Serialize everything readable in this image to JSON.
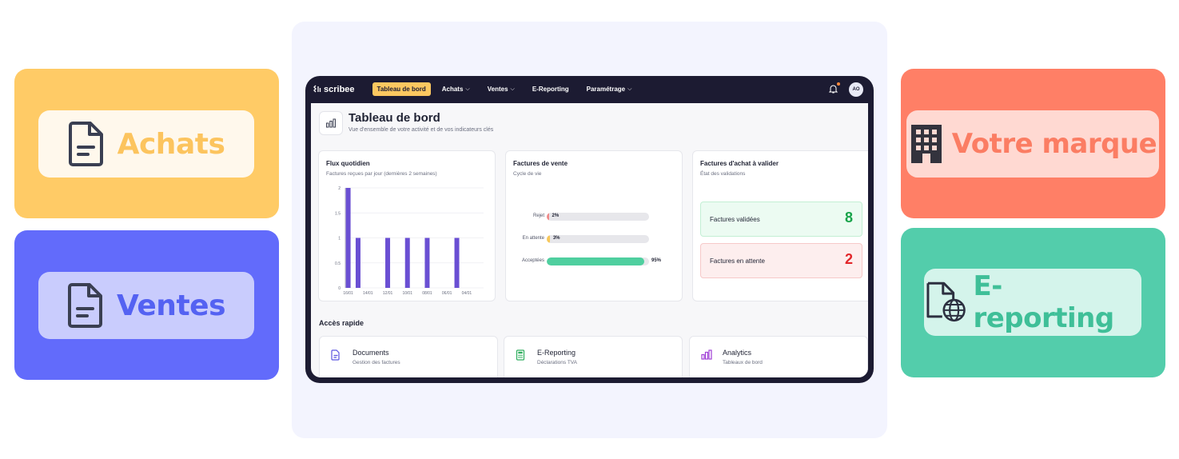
{
  "tiles": {
    "achats": {
      "label": "Achats"
    },
    "ventes": {
      "label": "Ventes"
    },
    "marque": {
      "label": "Votre marque"
    },
    "ereporting": {
      "label": "E-reporting"
    }
  },
  "nav": {
    "brand": "scribee",
    "items": [
      {
        "label": "Tableau de bord",
        "active": true,
        "dropdown": false
      },
      {
        "label": "Achats",
        "dropdown": true
      },
      {
        "label": "Ventes",
        "dropdown": true
      },
      {
        "label": "E-Reporting",
        "dropdown": false
      },
      {
        "label": "Paramétrage",
        "dropdown": true
      }
    ],
    "avatar_initials": "AO",
    "notification_dot_color": "#ff8a3d"
  },
  "page": {
    "title": "Tableau de bord",
    "subtitle": "Vue d'ensemble de votre activité et de vos indicateurs clés"
  },
  "cards": {
    "flux": {
      "title": "Flux quotidien",
      "subtitle": "Factures reçues par jour (dernières 2 semaines)"
    },
    "ventes": {
      "title": "Factures de vente",
      "subtitle": "Cycle de vie",
      "rows": [
        {
          "label": "Rejet",
          "value": "2%",
          "percent": 2,
          "color": "#f08a8a"
        },
        {
          "label": "En attente",
          "value": "3%",
          "percent": 3,
          "color": "#f7c85a"
        },
        {
          "label": "Acceptées",
          "value": "95%",
          "percent": 95,
          "color": "#4fcf9f"
        }
      ]
    },
    "achat": {
      "title": "Factures d'achat à valider",
      "subtitle": "État des validations",
      "validated": {
        "label": "Factures validées",
        "count": "8"
      },
      "pending": {
        "label": "Factures en attente",
        "count": "2"
      }
    }
  },
  "chart_data": {
    "type": "bar",
    "y_ticks": [
      "2",
      "1.5",
      "1",
      "0.5",
      "0"
    ],
    "ylim": [
      0,
      2
    ],
    "x_tick_labels": [
      "16/01",
      "14/01",
      "12/01",
      "10/01",
      "08/01",
      "06/01",
      "04/01"
    ],
    "values": [
      2,
      1,
      0,
      0,
      1,
      0,
      1,
      0,
      1,
      0,
      0,
      1,
      0,
      0
    ],
    "bar_color": "#6a4fd3",
    "grid": true
  },
  "quick_access": {
    "title": "Accès rapide",
    "items": [
      {
        "title": "Documents",
        "subtitle": "Gestion des factures"
      },
      {
        "title": "E-Reporting",
        "subtitle": "Déclarations TVA"
      },
      {
        "title": "Analytics",
        "subtitle": "Tableaux de bord"
      }
    ]
  }
}
